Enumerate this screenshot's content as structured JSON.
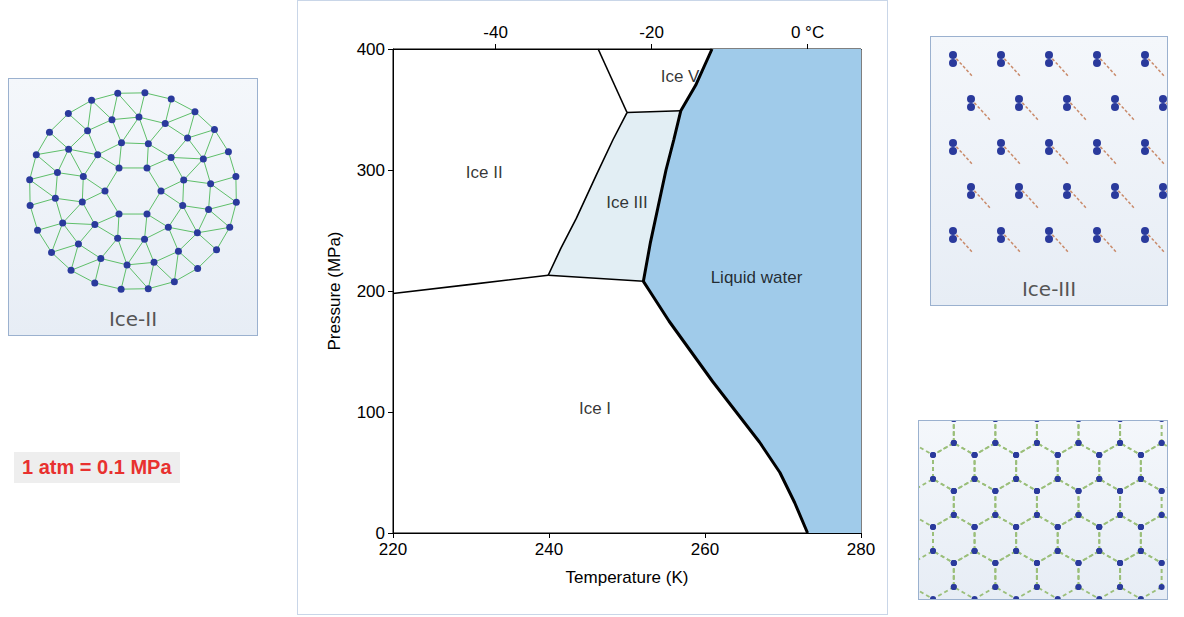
{
  "chart_data": {
    "type": "phase_diagram",
    "x_label": "Temperature (K)",
    "y_label": "Pressure (MPa)",
    "xlim": [
      220,
      280
    ],
    "xticks": [
      220,
      240,
      260,
      280
    ],
    "ylim": [
      0,
      400
    ],
    "yticks": [
      0,
      100,
      200,
      300,
      400
    ],
    "x2lim": [
      -53.15,
      6.85
    ],
    "x2ticks": [
      -40,
      -20,
      {
        "value": 0,
        "label": "0 °C"
      }
    ],
    "grid": false,
    "filled_regions": [
      {
        "name": "Liquid water",
        "color": "#a0cbea",
        "points": [
          [
            273.15,
            0
          ],
          [
            271.5,
            25
          ],
          [
            269.6,
            50
          ],
          [
            267.0,
            75
          ],
          [
            264.0,
            100
          ],
          [
            261.0,
            125
          ],
          [
            258.2,
            150
          ],
          [
            255.4,
            175
          ],
          [
            252.9,
            200
          ],
          [
            252.1,
            208
          ],
          [
            253.0,
            240
          ],
          [
            254.0,
            270
          ],
          [
            255.0,
            300
          ],
          [
            256.0,
            325
          ],
          [
            256.9,
            349
          ],
          [
            258.8,
            370
          ],
          [
            260.9,
            400
          ],
          [
            280,
            400
          ],
          [
            280,
            0
          ]
        ]
      },
      {
        "name": "Ice III",
        "color": "#e2eef4",
        "points": [
          [
            239.9,
            213
          ],
          [
            252.1,
            208
          ],
          [
            253.0,
            240
          ],
          [
            254.0,
            270
          ],
          [
            255.0,
            300
          ],
          [
            256.0,
            325
          ],
          [
            256.9,
            349
          ],
          [
            250.0,
            347.5
          ],
          [
            248.2,
            325
          ],
          [
            246.0,
            295
          ],
          [
            243.5,
            260
          ],
          [
            241.5,
            235
          ]
        ]
      }
    ],
    "boundaries": [
      {
        "line_style": "bold",
        "points": [
          [
            273.15,
            0
          ],
          [
            271.5,
            25
          ],
          [
            269.6,
            50
          ],
          [
            267.0,
            75
          ],
          [
            264.0,
            100
          ],
          [
            261.0,
            125
          ],
          [
            258.2,
            150
          ],
          [
            255.4,
            175
          ],
          [
            252.9,
            200
          ],
          [
            252.1,
            208
          ],
          [
            253.0,
            240
          ],
          [
            254.0,
            270
          ],
          [
            255.0,
            300
          ],
          [
            256.0,
            325
          ],
          [
            256.9,
            349
          ],
          [
            258.8,
            370
          ],
          [
            260.9,
            400
          ]
        ]
      },
      {
        "line_style": "solid",
        "points": [
          [
            252.1,
            208
          ],
          [
            239.9,
            213
          ]
        ]
      },
      {
        "line_style": "solid",
        "points": [
          [
            239.9,
            213
          ],
          [
            230,
            205.5
          ],
          [
            220,
            198
          ]
        ]
      },
      {
        "line_style": "solid",
        "points": [
          [
            239.9,
            213
          ],
          [
            241.5,
            235
          ],
          [
            243.5,
            260
          ],
          [
            246.0,
            295
          ],
          [
            248.2,
            325
          ],
          [
            250.0,
            347.5
          ]
        ]
      },
      {
        "line_style": "solid",
        "points": [
          [
            250.0,
            347.5
          ],
          [
            256.9,
            349
          ]
        ]
      },
      {
        "line_style": "solid",
        "points": [
          [
            250.0,
            347.5
          ],
          [
            246.3,
            400
          ]
        ]
      }
    ],
    "region_labels": [
      {
        "text": "Ice V",
        "x": 256.8,
        "y": 377
      },
      {
        "text": "Ice II",
        "x": 231.7,
        "y": 298
      },
      {
        "text": "Ice III",
        "x": 250,
        "y": 273
      },
      {
        "text": "Liquid water",
        "x": 266.6,
        "y": 211
      },
      {
        "text": "Ice I",
        "x": 245.9,
        "y": 103
      }
    ]
  },
  "panels": [
    {
      "label": "Ice-II"
    },
    {
      "label": "Ice-III"
    }
  ],
  "annotation": {
    "text": "1 atm = 0.1 MPa",
    "color": "#e8312f"
  }
}
